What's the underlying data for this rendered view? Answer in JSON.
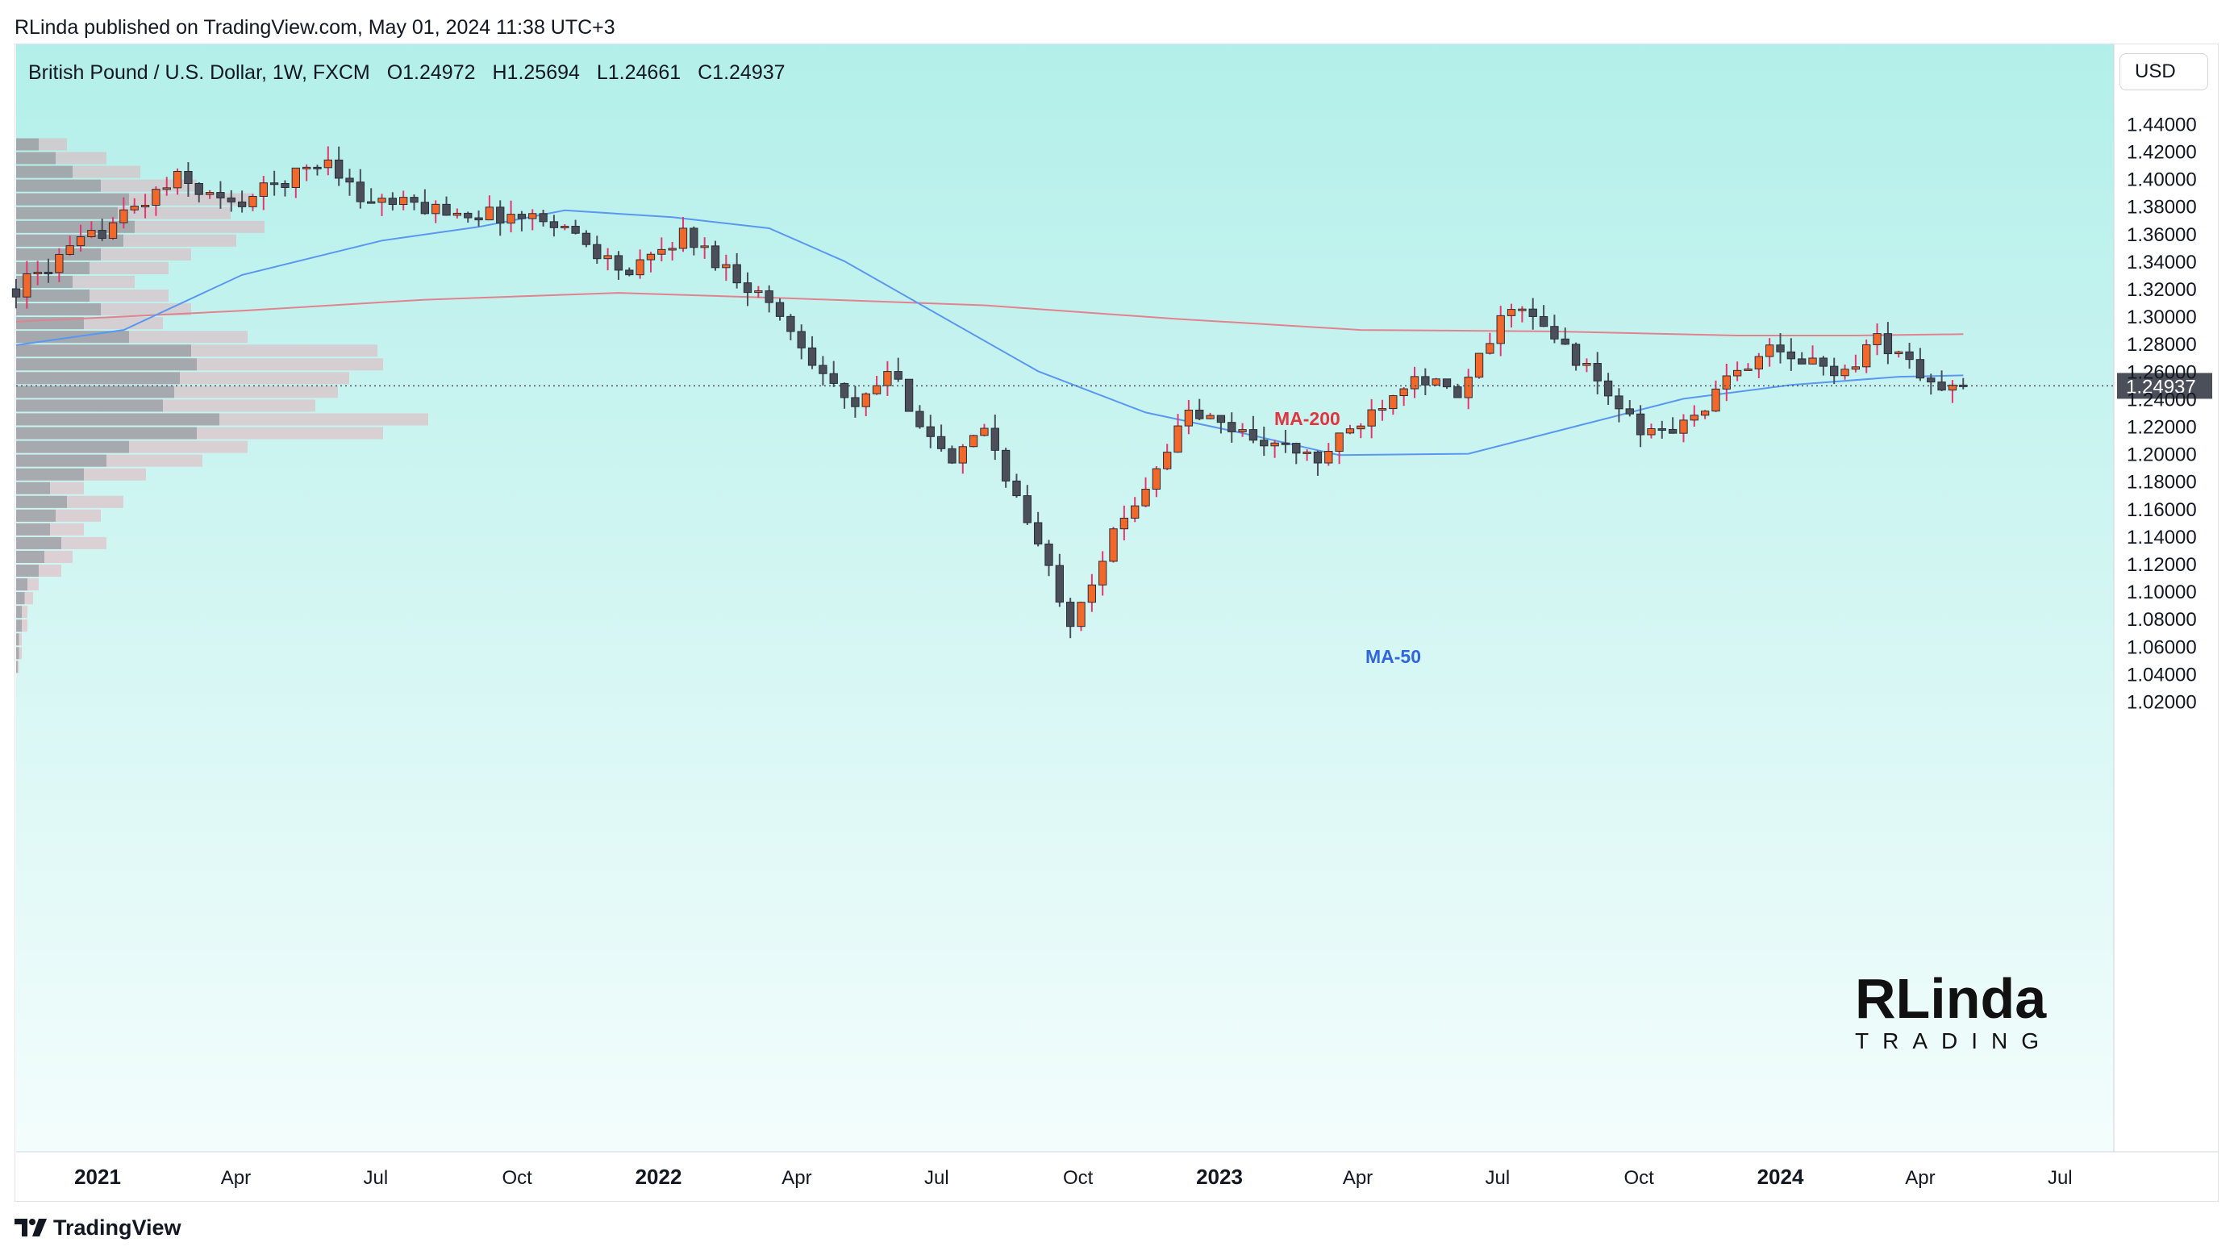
{
  "publish_info": "RLinda published on TradingView.com, May 01, 2024 11:38 UTC+3",
  "symbol": {
    "name": "British Pound / U.S. Dollar, 1W, FXCM",
    "open": "O1.24972",
    "high": "H1.25694",
    "low": "L1.24661",
    "close": "C1.24937"
  },
  "currency_button": "USD",
  "footer_brand": "TradingView",
  "watermark": {
    "line1": "RLinda",
    "line2": "TRADING"
  },
  "colors": {
    "background_top": "#b3efea",
    "background_bottom": "#f3fdfc",
    "bull_candle": "#f2672a",
    "bear_candle": "#4b4f5a",
    "wick_bull": "#e8356b",
    "ma50": "#5a97f0",
    "ma200": "#e0838f",
    "ma200_label": "#e0353f",
    "ma50_label": "#2f66e0",
    "current_price_bg": "#4b4f5a"
  },
  "chart_data": {
    "type": "candlestick",
    "timeframe": "1W",
    "y_axis": {
      "min": 1.0,
      "max": 1.45,
      "ticks": [
        "1.44000",
        "1.42000",
        "1.40000",
        "1.38000",
        "1.36000",
        "1.34000",
        "1.32000",
        "1.30000",
        "1.28000",
        "1.26000",
        "1.24000",
        "1.22000",
        "1.20000",
        "1.18000",
        "1.16000",
        "1.14000",
        "1.12000",
        "1.10000",
        "1.08000",
        "1.06000",
        "1.04000",
        "1.02000"
      ]
    },
    "x_axis": {
      "start": "2020-11-09",
      "end": "2024-08-05",
      "ticks": [
        {
          "label": "2021",
          "date": "2021-01-01",
          "bold": true
        },
        {
          "label": "Apr",
          "date": "2021-04-01"
        },
        {
          "label": "Jul",
          "date": "2021-07-01"
        },
        {
          "label": "Oct",
          "date": "2021-10-01"
        },
        {
          "label": "2022",
          "date": "2022-01-01",
          "bold": true
        },
        {
          "label": "Apr",
          "date": "2022-04-01"
        },
        {
          "label": "Jul",
          "date": "2022-07-01"
        },
        {
          "label": "Oct",
          "date": "2022-10-01"
        },
        {
          "label": "2023",
          "date": "2023-01-01",
          "bold": true
        },
        {
          "label": "Apr",
          "date": "2023-04-01"
        },
        {
          "label": "Jul",
          "date": "2023-07-01"
        },
        {
          "label": "Oct",
          "date": "2023-10-01"
        },
        {
          "label": "2024",
          "date": "2024-01-01",
          "bold": true
        },
        {
          "label": "Apr",
          "date": "2024-04-01"
        },
        {
          "label": "Jul",
          "date": "2024-07-01"
        }
      ]
    },
    "current_price": {
      "value": 1.24937,
      "label": "1.24937"
    },
    "candle_path": [
      {
        "date": "2020-11-09",
        "price": 1.32
      },
      {
        "date": "2021-02-22",
        "price": 1.4
      },
      {
        "date": "2021-03-29",
        "price": 1.38
      },
      {
        "date": "2021-06-01",
        "price": 1.415
      },
      {
        "date": "2021-06-21",
        "price": 1.385
      },
      {
        "date": "2021-09-01",
        "price": 1.375
      },
      {
        "date": "2021-10-25",
        "price": 1.37
      },
      {
        "date": "2021-12-13",
        "price": 1.33
      },
      {
        "date": "2022-01-17",
        "price": 1.36
      },
      {
        "date": "2022-03-14",
        "price": 1.31
      },
      {
        "date": "2022-05-09",
        "price": 1.23
      },
      {
        "date": "2022-05-30",
        "price": 1.26
      },
      {
        "date": "2022-07-11",
        "price": 1.19
      },
      {
        "date": "2022-08-01",
        "price": 1.22
      },
      {
        "date": "2022-09-26",
        "price": 1.08
      },
      {
        "date": "2022-10-24",
        "price": 1.14
      },
      {
        "date": "2022-12-12",
        "price": 1.23
      },
      {
        "date": "2023-03-06",
        "price": 1.195
      },
      {
        "date": "2023-05-08",
        "price": 1.26
      },
      {
        "date": "2023-06-05",
        "price": 1.24
      },
      {
        "date": "2023-07-10",
        "price": 1.31
      },
      {
        "date": "2023-08-21",
        "price": 1.27
      },
      {
        "date": "2023-10-02",
        "price": 1.215
      },
      {
        "date": "2023-10-30",
        "price": 1.22
      },
      {
        "date": "2023-12-18",
        "price": 1.275
      },
      {
        "date": "2024-02-12",
        "price": 1.26
      },
      {
        "date": "2024-03-04",
        "price": 1.285
      },
      {
        "date": "2024-04-15",
        "price": 1.245
      },
      {
        "date": "2024-04-29",
        "price": 1.2494
      }
    ],
    "ma50": {
      "label": "MA-50",
      "points": [
        {
          "date": "2020-11-09",
          "price": 1.279
        },
        {
          "date": "2021-01-18",
          "price": 1.29
        },
        {
          "date": "2021-04-05",
          "price": 1.33
        },
        {
          "date": "2021-07-05",
          "price": 1.355
        },
        {
          "date": "2021-09-06",
          "price": 1.365
        },
        {
          "date": "2021-11-01",
          "price": 1.377
        },
        {
          "date": "2022-01-10",
          "price": 1.372
        },
        {
          "date": "2022-03-14",
          "price": 1.364
        },
        {
          "date": "2022-05-02",
          "price": 1.34
        },
        {
          "date": "2022-07-04",
          "price": 1.3
        },
        {
          "date": "2022-09-05",
          "price": 1.26
        },
        {
          "date": "2022-11-14",
          "price": 1.23
        },
        {
          "date": "2023-01-16",
          "price": 1.215
        },
        {
          "date": "2023-03-20",
          "price": 1.199
        },
        {
          "date": "2023-06-12",
          "price": 1.2
        },
        {
          "date": "2023-08-21",
          "price": 1.22
        },
        {
          "date": "2023-10-30",
          "price": 1.24
        },
        {
          "date": "2024-01-08",
          "price": 1.25
        },
        {
          "date": "2024-03-18",
          "price": 1.256
        },
        {
          "date": "2024-04-29",
          "price": 1.257
        }
      ]
    },
    "ma200": {
      "label": "MA-200",
      "points": [
        {
          "date": "2020-11-09",
          "price": 1.296
        },
        {
          "date": "2021-04-05",
          "price": 1.304
        },
        {
          "date": "2021-08-02",
          "price": 1.312
        },
        {
          "date": "2021-12-06",
          "price": 1.317
        },
        {
          "date": "2022-03-28",
          "price": 1.313
        },
        {
          "date": "2022-08-01",
          "price": 1.308
        },
        {
          "date": "2022-12-05",
          "price": 1.298
        },
        {
          "date": "2023-04-03",
          "price": 1.29
        },
        {
          "date": "2023-08-07",
          "price": 1.289
        },
        {
          "date": "2023-12-04",
          "price": 1.286
        },
        {
          "date": "2024-02-19",
          "price": 1.286
        },
        {
          "date": "2024-04-29",
          "price": 1.287
        }
      ]
    },
    "volume_profile": {
      "placement": "left",
      "buckets": [
        {
          "price": 1.425,
          "up": 8,
          "down": 10
        },
        {
          "price": 1.415,
          "up": 14,
          "down": 18
        },
        {
          "price": 1.405,
          "up": 20,
          "down": 24
        },
        {
          "price": 1.395,
          "up": 30,
          "down": 34
        },
        {
          "price": 1.385,
          "up": 40,
          "down": 44
        },
        {
          "price": 1.375,
          "up": 36,
          "down": 40
        },
        {
          "price": 1.365,
          "up": 42,
          "down": 46
        },
        {
          "price": 1.355,
          "up": 38,
          "down": 40
        },
        {
          "price": 1.345,
          "up": 30,
          "down": 32
        },
        {
          "price": 1.335,
          "up": 26,
          "down": 28
        },
        {
          "price": 1.325,
          "up": 20,
          "down": 22
        },
        {
          "price": 1.315,
          "up": 26,
          "down": 28
        },
        {
          "price": 1.305,
          "up": 30,
          "down": 32
        },
        {
          "price": 1.295,
          "up": 24,
          "down": 28
        },
        {
          "price": 1.285,
          "up": 40,
          "down": 42
        },
        {
          "price": 1.275,
          "up": 62,
          "down": 66
        },
        {
          "price": 1.265,
          "up": 64,
          "down": 66
        },
        {
          "price": 1.255,
          "up": 58,
          "down": 60
        },
        {
          "price": 1.245,
          "up": 56,
          "down": 58
        },
        {
          "price": 1.235,
          "up": 52,
          "down": 54
        },
        {
          "price": 1.225,
          "up": 72,
          "down": 74
        },
        {
          "price": 1.215,
          "up": 64,
          "down": 66
        },
        {
          "price": 1.205,
          "up": 40,
          "down": 42
        },
        {
          "price": 1.195,
          "up": 32,
          "down": 34
        },
        {
          "price": 1.185,
          "up": 24,
          "down": 22
        },
        {
          "price": 1.175,
          "up": 12,
          "down": 12
        },
        {
          "price": 1.165,
          "up": 18,
          "down": 20
        },
        {
          "price": 1.155,
          "up": 14,
          "down": 16
        },
        {
          "price": 1.145,
          "up": 12,
          "down": 12
        },
        {
          "price": 1.135,
          "up": 16,
          "down": 16
        },
        {
          "price": 1.125,
          "up": 10,
          "down": 10
        },
        {
          "price": 1.115,
          "up": 8,
          "down": 8
        },
        {
          "price": 1.105,
          "up": 4,
          "down": 4
        },
        {
          "price": 1.095,
          "up": 3,
          "down": 3
        },
        {
          "price": 1.085,
          "up": 2,
          "down": 2
        },
        {
          "price": 1.075,
          "up": 2,
          "down": 2
        },
        {
          "price": 1.065,
          "up": 1,
          "down": 1
        },
        {
          "price": 1.055,
          "up": 1,
          "down": 1
        },
        {
          "price": 1.045,
          "up": 0.5,
          "down": 0.5
        }
      ]
    }
  }
}
